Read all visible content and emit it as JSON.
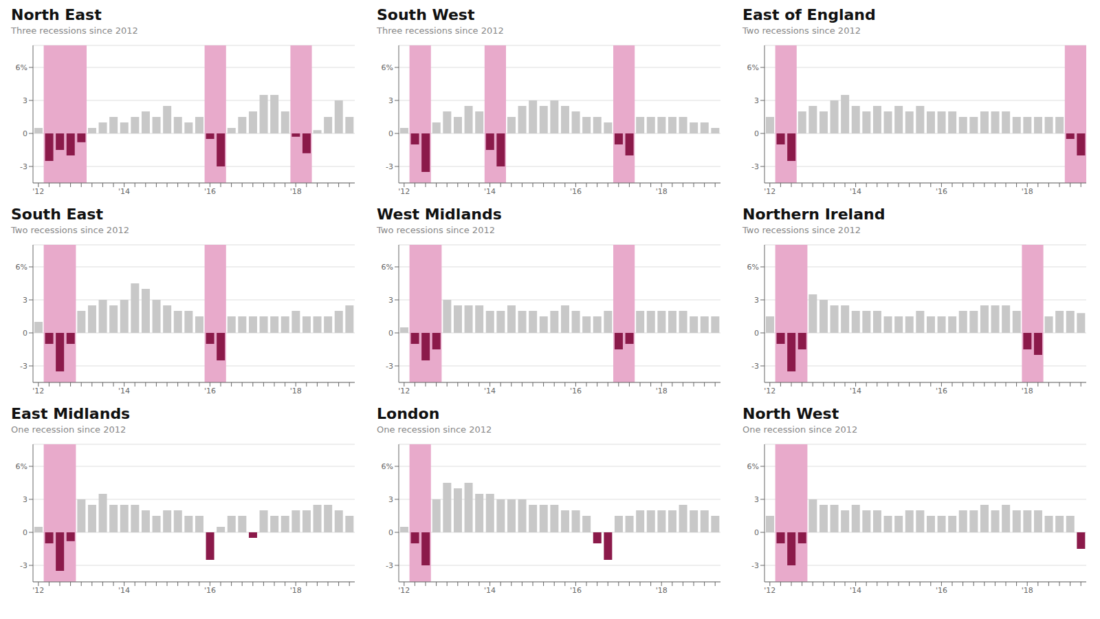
{
  "chart_data": [
    {
      "type": "bar",
      "title": "North East",
      "subtitle": "Three recessions since 2012",
      "categories": [
        "'12",
        null,
        null,
        null,
        null,
        null,
        null,
        null,
        "'14",
        null,
        null,
        null,
        null,
        null,
        null,
        null,
        "'16",
        null,
        null,
        null,
        null,
        null,
        null,
        null,
        "'18",
        null,
        null,
        null,
        null,
        null
      ],
      "values": [
        0.5,
        -2.5,
        -1.5,
        -2.0,
        -0.8,
        0.5,
        1.0,
        1.5,
        1.0,
        1.5,
        2.0,
        1.5,
        2.5,
        1.5,
        1.0,
        1.5,
        -0.5,
        -3.0,
        0.5,
        1.5,
        2.0,
        3.5,
        3.5,
        2.0,
        -0.3,
        -1.8,
        0.3,
        1.5,
        3.0,
        1.5
      ],
      "colors": [
        "#c8c8c8",
        "#8b1a4a",
        "#8b1a4a",
        "#8b1a4a",
        "#8b1a4a",
        "#c8c8c8",
        "#c8c8c8",
        "#c8c8c8",
        "#c8c8c8",
        "#c8c8c8",
        "#c8c8c8",
        "#c8c8c8",
        "#c8c8c8",
        "#c8c8c8",
        "#c8c8c8",
        "#c8c8c8",
        "#8b1a4a",
        "#8b1a4a",
        "#c8c8c8",
        "#c8c8c8",
        "#c8c8c8",
        "#c8c8c8",
        "#c8c8c8",
        "#c8c8c8",
        "#8b1a4a",
        "#8b1a4a",
        "#c8c8c8",
        "#c8c8c8",
        "#c8c8c8",
        "#c8c8c8"
      ],
      "recession_periods": [
        [
          1,
          4
        ],
        [
          16,
          17
        ],
        [
          24,
          25
        ]
      ],
      "recession_color": "#e8aacb",
      "ylim": [
        -4.5,
        8.0
      ],
      "yticks": [
        -3,
        0,
        3,
        {
          "value": 6,
          "label": "6%"
        }
      ],
      "grid": true
    },
    {
      "type": "bar",
      "title": "South West",
      "subtitle": "Three recessions since 2012",
      "categories": [
        "'12",
        null,
        null,
        null,
        null,
        null,
        null,
        null,
        "'14",
        null,
        null,
        null,
        null,
        null,
        null,
        null,
        "'16",
        null,
        null,
        null,
        null,
        null,
        null,
        null,
        "'18",
        null,
        null,
        null,
        null,
        null
      ],
      "values": [
        0.5,
        -1.0,
        -3.5,
        1.0,
        2.0,
        1.5,
        2.5,
        2.0,
        -1.5,
        -3.0,
        1.5,
        2.5,
        3.0,
        2.5,
        3.0,
        2.5,
        2.0,
        1.5,
        1.5,
        1.0,
        -1.0,
        -2.0,
        1.5,
        1.5,
        1.5,
        1.5,
        1.5,
        1.0,
        1.0,
        0.5
      ],
      "colors": [
        "#c8c8c8",
        "#8b1a4a",
        "#8b1a4a",
        "#c8c8c8",
        "#c8c8c8",
        "#c8c8c8",
        "#c8c8c8",
        "#c8c8c8",
        "#8b1a4a",
        "#8b1a4a",
        "#c8c8c8",
        "#c8c8c8",
        "#c8c8c8",
        "#c8c8c8",
        "#c8c8c8",
        "#c8c8c8",
        "#c8c8c8",
        "#c8c8c8",
        "#c8c8c8",
        "#c8c8c8",
        "#8b1a4a",
        "#8b1a4a",
        "#c8c8c8",
        "#c8c8c8",
        "#c8c8c8",
        "#c8c8c8",
        "#c8c8c8",
        "#c8c8c8",
        "#c8c8c8",
        "#c8c8c8"
      ],
      "recession_periods": [
        [
          1,
          2
        ],
        [
          8,
          9
        ],
        [
          20,
          21
        ]
      ],
      "recession_color": "#e8aacb",
      "ylim": [
        -4.5,
        8.0
      ],
      "yticks": [
        -3,
        0,
        3,
        {
          "value": 6,
          "label": "6%"
        }
      ],
      "grid": true
    },
    {
      "type": "bar",
      "title": "East of England",
      "subtitle": "Two recessions since 2012",
      "categories": [
        "'12",
        null,
        null,
        null,
        null,
        null,
        null,
        null,
        "'14",
        null,
        null,
        null,
        null,
        null,
        null,
        null,
        "'16",
        null,
        null,
        null,
        null,
        null,
        null,
        null,
        "'18",
        null,
        null,
        null,
        null,
        null
      ],
      "values": [
        1.5,
        -1.0,
        -2.5,
        2.0,
        2.5,
        2.0,
        3.0,
        3.5,
        2.5,
        2.0,
        2.5,
        2.0,
        2.5,
        2.0,
        2.5,
        2.0,
        2.0,
        2.0,
        1.5,
        1.5,
        2.0,
        2.0,
        2.0,
        1.5,
        1.5,
        1.5,
        1.5,
        1.5,
        -0.5,
        -2.0
      ],
      "colors": [
        "#c8c8c8",
        "#8b1a4a",
        "#8b1a4a",
        "#c8c8c8",
        "#c8c8c8",
        "#c8c8c8",
        "#c8c8c8",
        "#c8c8c8",
        "#c8c8c8",
        "#c8c8c8",
        "#c8c8c8",
        "#c8c8c8",
        "#c8c8c8",
        "#c8c8c8",
        "#c8c8c8",
        "#c8c8c8",
        "#c8c8c8",
        "#c8c8c8",
        "#c8c8c8",
        "#c8c8c8",
        "#c8c8c8",
        "#c8c8c8",
        "#c8c8c8",
        "#c8c8c8",
        "#c8c8c8",
        "#c8c8c8",
        "#c8c8c8",
        "#c8c8c8",
        "#8b1a4a",
        "#8b1a4a"
      ],
      "recession_periods": [
        [
          1,
          2
        ],
        [
          28,
          29
        ]
      ],
      "recession_color": "#e8aacb",
      "ylim": [
        -4.5,
        8.0
      ],
      "yticks": [
        -3,
        0,
        3,
        {
          "value": 6,
          "label": "6%"
        }
      ],
      "grid": true
    },
    {
      "type": "bar",
      "title": "South East",
      "subtitle": "Two recessions since 2012",
      "categories": [
        "'12",
        null,
        null,
        null,
        null,
        null,
        null,
        null,
        "'14",
        null,
        null,
        null,
        null,
        null,
        null,
        null,
        "'16",
        null,
        null,
        null,
        null,
        null,
        null,
        null,
        "'18",
        null,
        null,
        null,
        null,
        null
      ],
      "values": [
        1.0,
        -1.0,
        -3.5,
        -1.0,
        2.0,
        2.5,
        3.0,
        2.5,
        3.0,
        4.5,
        4.0,
        3.0,
        2.5,
        2.0,
        2.0,
        1.5,
        -1.0,
        -2.5,
        1.5,
        1.5,
        1.5,
        1.5,
        1.5,
        1.5,
        2.0,
        1.5,
        1.5,
        1.5,
        2.0,
        2.5
      ],
      "colors": [
        "#c8c8c8",
        "#8b1a4a",
        "#8b1a4a",
        "#8b1a4a",
        "#c8c8c8",
        "#c8c8c8",
        "#c8c8c8",
        "#c8c8c8",
        "#c8c8c8",
        "#c8c8c8",
        "#c8c8c8",
        "#c8c8c8",
        "#c8c8c8",
        "#c8c8c8",
        "#c8c8c8",
        "#c8c8c8",
        "#8b1a4a",
        "#8b1a4a",
        "#c8c8c8",
        "#c8c8c8",
        "#c8c8c8",
        "#c8c8c8",
        "#c8c8c8",
        "#c8c8c8",
        "#c8c8c8",
        "#c8c8c8",
        "#c8c8c8",
        "#c8c8c8",
        "#c8c8c8",
        "#c8c8c8"
      ],
      "recession_periods": [
        [
          1,
          3
        ],
        [
          16,
          17
        ]
      ],
      "recession_color": "#e8aacb",
      "ylim": [
        -4.5,
        8.0
      ],
      "yticks": [
        -3,
        0,
        3,
        {
          "value": 6,
          "label": "6%"
        }
      ],
      "grid": true
    },
    {
      "type": "bar",
      "title": "West Midlands",
      "subtitle": "Two recessions since 2012",
      "categories": [
        "'12",
        null,
        null,
        null,
        null,
        null,
        null,
        null,
        "'14",
        null,
        null,
        null,
        null,
        null,
        null,
        null,
        "'16",
        null,
        null,
        null,
        null,
        null,
        null,
        null,
        "'18",
        null,
        null,
        null,
        null,
        null
      ],
      "values": [
        0.5,
        -1.0,
        -2.5,
        -1.5,
        3.0,
        2.5,
        2.5,
        2.5,
        2.0,
        2.0,
        2.5,
        2.0,
        2.0,
        1.5,
        2.0,
        2.5,
        2.0,
        1.5,
        1.5,
        2.0,
        -1.5,
        -1.0,
        2.0,
        2.0,
        2.0,
        2.0,
        2.0,
        1.5,
        1.5,
        1.5
      ],
      "colors": [
        "#c8c8c8",
        "#8b1a4a",
        "#8b1a4a",
        "#8b1a4a",
        "#c8c8c8",
        "#c8c8c8",
        "#c8c8c8",
        "#c8c8c8",
        "#c8c8c8",
        "#c8c8c8",
        "#c8c8c8",
        "#c8c8c8",
        "#c8c8c8",
        "#c8c8c8",
        "#c8c8c8",
        "#c8c8c8",
        "#c8c8c8",
        "#c8c8c8",
        "#c8c8c8",
        "#c8c8c8",
        "#8b1a4a",
        "#8b1a4a",
        "#c8c8c8",
        "#c8c8c8",
        "#c8c8c8",
        "#c8c8c8",
        "#c8c8c8",
        "#c8c8c8",
        "#c8c8c8",
        "#c8c8c8"
      ],
      "recession_periods": [
        [
          1,
          3
        ],
        [
          20,
          21
        ]
      ],
      "recession_color": "#e8aacb",
      "ylim": [
        -4.5,
        8.0
      ],
      "yticks": [
        -3,
        0,
        3,
        {
          "value": 6,
          "label": "6%"
        }
      ],
      "grid": true
    },
    {
      "type": "bar",
      "title": "Northern Ireland",
      "subtitle": "Two recessions since 2012",
      "categories": [
        "'12",
        null,
        null,
        null,
        null,
        null,
        null,
        null,
        "'14",
        null,
        null,
        null,
        null,
        null,
        null,
        null,
        "'16",
        null,
        null,
        null,
        null,
        null,
        null,
        null,
        "'18",
        null,
        null,
        null,
        null,
        null
      ],
      "values": [
        1.5,
        -1.0,
        -3.5,
        -1.5,
        3.5,
        3.0,
        2.5,
        2.5,
        2.0,
        2.0,
        2.0,
        1.5,
        1.5,
        1.5,
        2.0,
        1.5,
        1.5,
        1.5,
        2.0,
        2.0,
        2.5,
        2.5,
        2.5,
        2.0,
        -1.5,
        -2.0,
        1.5,
        2.0,
        2.0,
        1.8
      ],
      "colors": [
        "#c8c8c8",
        "#8b1a4a",
        "#8b1a4a",
        "#8b1a4a",
        "#c8c8c8",
        "#c8c8c8",
        "#c8c8c8",
        "#c8c8c8",
        "#c8c8c8",
        "#c8c8c8",
        "#c8c8c8",
        "#c8c8c8",
        "#c8c8c8",
        "#c8c8c8",
        "#c8c8c8",
        "#c8c8c8",
        "#c8c8c8",
        "#c8c8c8",
        "#c8c8c8",
        "#c8c8c8",
        "#c8c8c8",
        "#c8c8c8",
        "#c8c8c8",
        "#c8c8c8",
        "#8b1a4a",
        "#8b1a4a",
        "#c8c8c8",
        "#c8c8c8",
        "#c8c8c8",
        "#c8c8c8"
      ],
      "recession_periods": [
        [
          1,
          3
        ],
        [
          24,
          25
        ]
      ],
      "recession_color": "#e8aacb",
      "ylim": [
        -4.5,
        8.0
      ],
      "yticks": [
        -3,
        0,
        3,
        {
          "value": 6,
          "label": "6%"
        }
      ],
      "grid": true
    },
    {
      "type": "bar",
      "title": "East Midlands",
      "subtitle": "One recession since 2012",
      "categories": [
        "'12",
        null,
        null,
        null,
        null,
        null,
        null,
        null,
        "'14",
        null,
        null,
        null,
        null,
        null,
        null,
        null,
        "'16",
        null,
        null,
        null,
        null,
        null,
        null,
        null,
        "'18",
        null,
        null,
        null,
        null,
        null
      ],
      "values": [
        0.5,
        -1.0,
        -3.5,
        -0.8,
        3.0,
        2.5,
        3.5,
        2.5,
        2.5,
        2.5,
        2.0,
        1.5,
        2.0,
        2.0,
        1.5,
        1.5,
        -2.5,
        0.5,
        1.5,
        1.5,
        -0.5,
        2.0,
        1.5,
        1.5,
        2.0,
        2.0,
        2.5,
        2.5,
        2.0,
        1.5
      ],
      "colors": [
        "#c8c8c8",
        "#8b1a4a",
        "#8b1a4a",
        "#8b1a4a",
        "#c8c8c8",
        "#c8c8c8",
        "#c8c8c8",
        "#c8c8c8",
        "#c8c8c8",
        "#c8c8c8",
        "#c8c8c8",
        "#c8c8c8",
        "#c8c8c8",
        "#c8c8c8",
        "#c8c8c8",
        "#c8c8c8",
        "#8b1a4a",
        "#c8c8c8",
        "#c8c8c8",
        "#c8c8c8",
        "#8b1a4a",
        "#c8c8c8",
        "#c8c8c8",
        "#c8c8c8",
        "#c8c8c8",
        "#c8c8c8",
        "#c8c8c8",
        "#c8c8c8",
        "#c8c8c8",
        "#c8c8c8"
      ],
      "recession_periods": [
        [
          1,
          3
        ]
      ],
      "recession_color": "#e8aacb",
      "ylim": [
        -4.5,
        8.0
      ],
      "yticks": [
        -3,
        0,
        3,
        {
          "value": 6,
          "label": "6%"
        }
      ],
      "grid": true
    },
    {
      "type": "bar",
      "title": "London",
      "subtitle": "One recession since 2012",
      "categories": [
        "'12",
        null,
        null,
        null,
        null,
        null,
        null,
        null,
        "'14",
        null,
        null,
        null,
        null,
        null,
        null,
        null,
        "'16",
        null,
        null,
        null,
        null,
        null,
        null,
        null,
        "'18",
        null,
        null,
        null,
        null,
        null
      ],
      "values": [
        0.5,
        -1.0,
        -3.0,
        3.0,
        4.5,
        4.0,
        4.5,
        3.5,
        3.5,
        3.0,
        3.0,
        3.0,
        2.5,
        2.5,
        2.5,
        2.0,
        2.0,
        1.5,
        -1.0,
        -2.5,
        1.5,
        1.5,
        2.0,
        2.0,
        2.0,
        2.0,
        2.5,
        2.0,
        2.0,
        1.5
      ],
      "colors": [
        "#c8c8c8",
        "#8b1a4a",
        "#8b1a4a",
        "#c8c8c8",
        "#c8c8c8",
        "#c8c8c8",
        "#c8c8c8",
        "#c8c8c8",
        "#c8c8c8",
        "#c8c8c8",
        "#c8c8c8",
        "#c8c8c8",
        "#c8c8c8",
        "#c8c8c8",
        "#c8c8c8",
        "#c8c8c8",
        "#c8c8c8",
        "#c8c8c8",
        "#8b1a4a",
        "#8b1a4a",
        "#c8c8c8",
        "#c8c8c8",
        "#c8c8c8",
        "#c8c8c8",
        "#c8c8c8",
        "#c8c8c8",
        "#c8c8c8",
        "#c8c8c8",
        "#c8c8c8",
        "#c8c8c8"
      ],
      "recession_periods": [
        [
          1,
          2
        ]
      ],
      "recession_color": "#e8aacb",
      "ylim": [
        -4.5,
        8.0
      ],
      "yticks": [
        -3,
        0,
        3,
        {
          "value": 6,
          "label": "6%"
        }
      ],
      "grid": true
    },
    {
      "type": "bar",
      "title": "North West",
      "subtitle": "One recession since 2012",
      "categories": [
        "'12",
        null,
        null,
        null,
        null,
        null,
        null,
        null,
        "'14",
        null,
        null,
        null,
        null,
        null,
        null,
        null,
        "'16",
        null,
        null,
        null,
        null,
        null,
        null,
        null,
        "'18",
        null,
        null,
        null,
        null,
        null
      ],
      "values": [
        1.5,
        -1.0,
        -3.0,
        -1.0,
        3.0,
        2.5,
        2.5,
        2.0,
        2.5,
        2.0,
        2.0,
        1.5,
        1.5,
        2.0,
        2.0,
        1.5,
        1.5,
        1.5,
        2.0,
        2.0,
        2.5,
        2.0,
        2.5,
        2.0,
        2.0,
        2.0,
        1.5,
        1.5,
        1.5,
        -1.5
      ],
      "colors": [
        "#c8c8c8",
        "#8b1a4a",
        "#8b1a4a",
        "#8b1a4a",
        "#c8c8c8",
        "#c8c8c8",
        "#c8c8c8",
        "#c8c8c8",
        "#c8c8c8",
        "#c8c8c8",
        "#c8c8c8",
        "#c8c8c8",
        "#c8c8c8",
        "#c8c8c8",
        "#c8c8c8",
        "#c8c8c8",
        "#c8c8c8",
        "#c8c8c8",
        "#c8c8c8",
        "#c8c8c8",
        "#c8c8c8",
        "#c8c8c8",
        "#c8c8c8",
        "#c8c8c8",
        "#c8c8c8",
        "#c8c8c8",
        "#c8c8c8",
        "#c8c8c8",
        "#c8c8c8",
        "#8b1a4a"
      ],
      "recession_periods": [
        [
          1,
          3
        ]
      ],
      "recession_color": "#e8aacb",
      "ylim": [
        -4.5,
        8.0
      ],
      "yticks": [
        -3,
        0,
        3,
        {
          "value": 6,
          "label": "6%"
        }
      ],
      "grid": true
    }
  ]
}
